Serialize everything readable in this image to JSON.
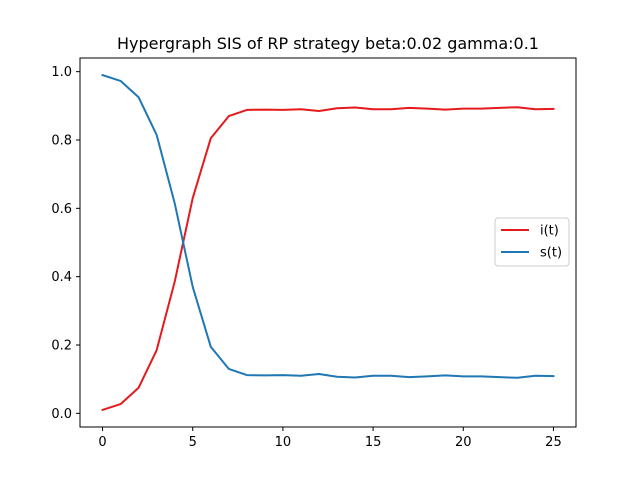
{
  "chart_data": {
    "type": "line",
    "title": "Hypergraph SIS of RP strategy     beta:0.02  gamma:0.1",
    "xlabel": "",
    "ylabel": "",
    "xlim": [
      -1.25,
      26.25
    ],
    "ylim": [
      -0.04,
      1.04
    ],
    "x_ticks": [
      0,
      5,
      10,
      15,
      20,
      25
    ],
    "y_ticks": [
      0.0,
      0.2,
      0.4,
      0.6,
      0.8,
      1.0
    ],
    "x_tick_labels": [
      "0",
      "5",
      "10",
      "15",
      "20",
      "25"
    ],
    "y_tick_labels": [
      "0.0",
      "0.2",
      "0.4",
      "0.6",
      "0.8",
      "1.0"
    ],
    "legend_position": "center-right",
    "x": [
      0,
      1,
      2,
      3,
      4,
      5,
      6,
      7,
      8,
      9,
      10,
      11,
      12,
      13,
      14,
      15,
      16,
      17,
      18,
      19,
      20,
      21,
      22,
      23,
      24,
      25
    ],
    "series": [
      {
        "name": "i(t)",
        "color": "#e41a1c",
        "values": [
          0.01,
          0.027,
          0.075,
          0.185,
          0.385,
          0.63,
          0.805,
          0.87,
          0.888,
          0.889,
          0.888,
          0.89,
          0.885,
          0.893,
          0.895,
          0.89,
          0.89,
          0.894,
          0.892,
          0.889,
          0.892,
          0.892,
          0.894,
          0.896,
          0.89,
          0.891
        ]
      },
      {
        "name": "s(t)",
        "color": "#1f77b4",
        "values": [
          0.99,
          0.973,
          0.925,
          0.815,
          0.615,
          0.37,
          0.195,
          0.13,
          0.112,
          0.111,
          0.112,
          0.11,
          0.115,
          0.107,
          0.105,
          0.11,
          0.11,
          0.106,
          0.108,
          0.111,
          0.108,
          0.108,
          0.106,
          0.104,
          0.11,
          0.109
        ]
      }
    ]
  }
}
